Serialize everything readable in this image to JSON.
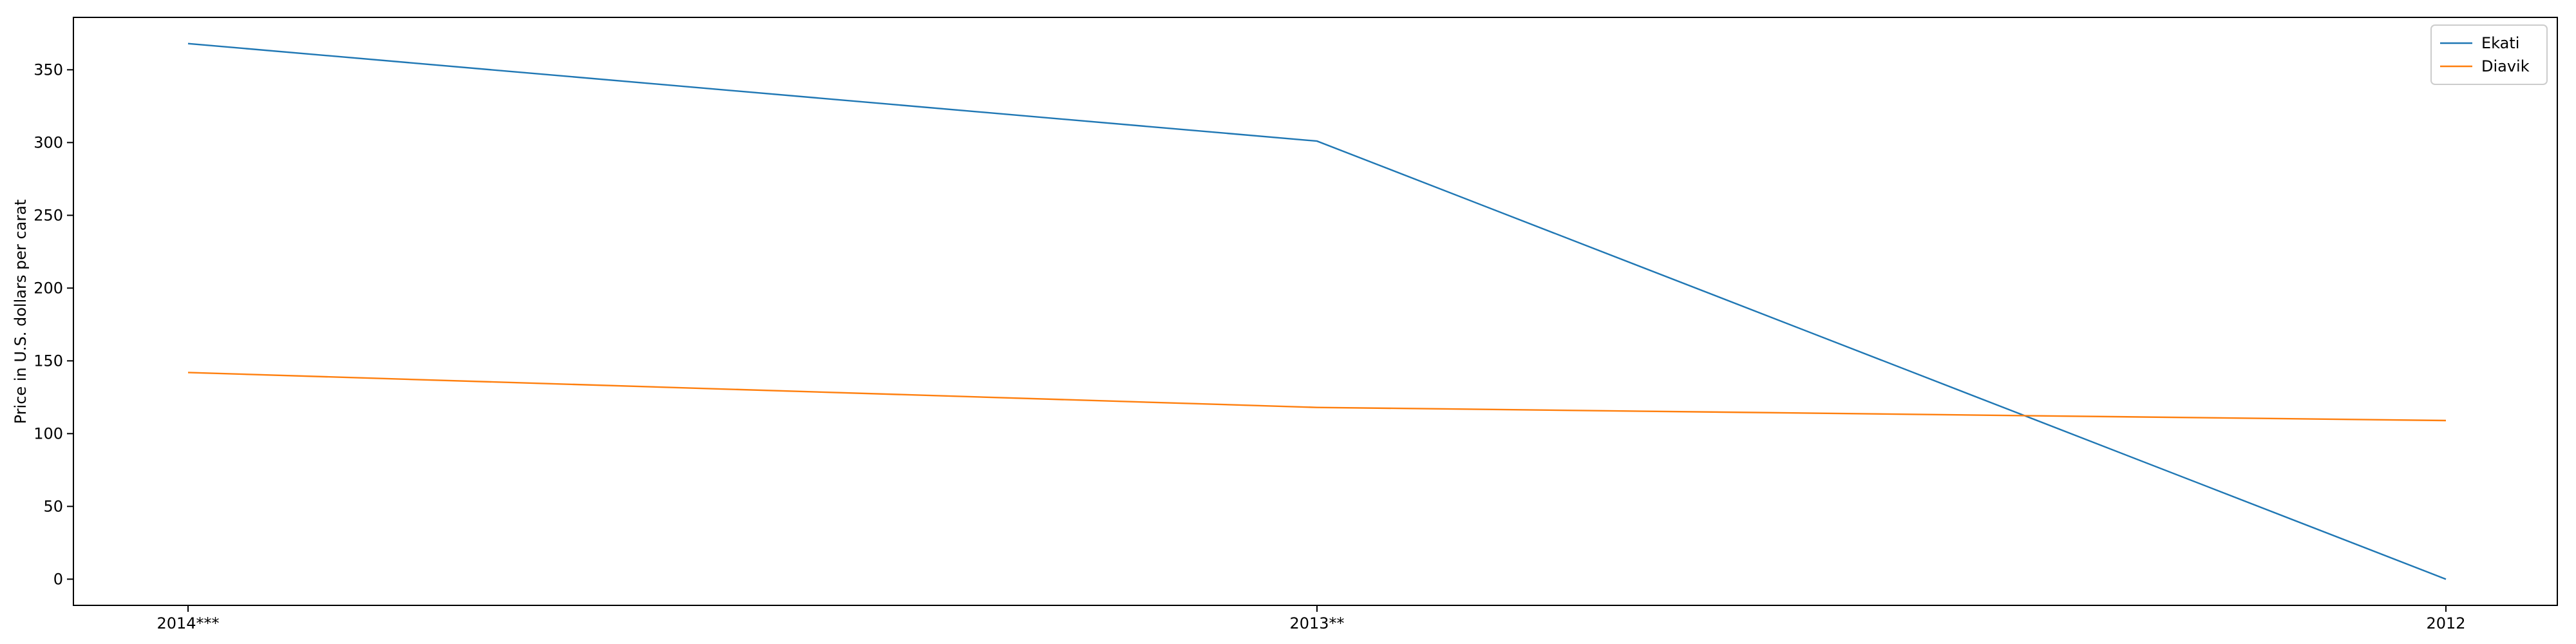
{
  "chart_data": {
    "type": "line",
    "categories": [
      "2014***",
      "2013**",
      "2012"
    ],
    "series": [
      {
        "name": "Ekati",
        "values": [
          368,
          301,
          0
        ],
        "color": "#1f77b4"
      },
      {
        "name": "Diavik",
        "values": [
          142,
          118,
          109
        ],
        "color": "#ff7f0e"
      }
    ],
    "title": "",
    "xlabel": "",
    "ylabel": "Price in U.S. dollars per carat",
    "ylim": [
      -18,
      386
    ],
    "yticks": [
      0,
      50,
      100,
      150,
      200,
      250,
      300,
      350
    ],
    "grid": false,
    "legend_position": "top-right"
  }
}
